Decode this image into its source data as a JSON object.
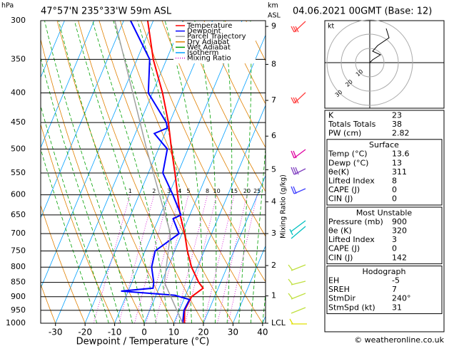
{
  "chart_data": {
    "type": "skewt",
    "title": "47°57'N 235°33'W 59m ASL",
    "date": "04.06.2021 00GMT (Base: 12)",
    "y_unit": "hPa",
    "y2_unit": "km",
    "y2_unit_sub": "ASL",
    "x_label": "Dewpoint / Temperature (°C)",
    "mixing_label": "Mixing Ratio (g/kg)",
    "xlim": [
      -35,
      41
    ],
    "xticks": [
      -30,
      -20,
      -10,
      0,
      10,
      20,
      30,
      40
    ],
    "ylim": [
      1000,
      300
    ],
    "yticks": [
      300,
      350,
      400,
      450,
      500,
      550,
      600,
      650,
      700,
      750,
      800,
      850,
      900,
      950,
      1000
    ],
    "y2ticks": [
      {
        "value": 897,
        "label": "1"
      },
      {
        "value": 795,
        "label": "2"
      },
      {
        "value": 700,
        "label": "3"
      },
      {
        "value": 617,
        "label": "4"
      },
      {
        "value": 543,
        "label": "5"
      },
      {
        "value": 475,
        "label": "6"
      },
      {
        "value": 412,
        "label": "7"
      },
      {
        "value": 357,
        "label": "8"
      },
      {
        "value": 307,
        "label": "9"
      },
      {
        "value": 1000,
        "label": "LCL"
      }
    ],
    "mixing_ratios": [
      1,
      2,
      3,
      4,
      5,
      8,
      10,
      15,
      20,
      25
    ],
    "series": [
      {
        "name": "Temperature",
        "color": "#ff0000",
        "p": [
          1000,
          950,
          900,
          870,
          850,
          800,
          750,
          700,
          650,
          600,
          550,
          500,
          450,
          400,
          350,
          300
        ],
        "values": [
          13.6,
          11.8,
          12.2,
          14.9,
          12.6,
          8.0,
          4.3,
          0.9,
          -3.3,
          -7,
          -11.0,
          -15.6,
          -20.4,
          -26.6,
          -34.5,
          -41.9
        ]
      },
      {
        "name": "Dewpoint",
        "color": "#0000ff",
        "p": [
          1000,
          950,
          910,
          895,
          880,
          870,
          850,
          800,
          750,
          700,
          660,
          650,
          600,
          550,
          500,
          470,
          460,
          450,
          400,
          350,
          300
        ],
        "values": [
          13,
          11.6,
          11.9,
          6.4,
          -12.4,
          -2.0,
          -2.6,
          -5.5,
          -6.6,
          -1.0,
          -5.1,
          -3.0,
          -8.6,
          -15.1,
          -17,
          -23.6,
          -20,
          -21.1,
          -31.4,
          -35.7,
          -47.7
        ]
      },
      {
        "name": "Parcel Trajectory",
        "color": "#a0a0a0",
        "p": [
          1000,
          850,
          700,
          500,
          300
        ],
        "values": [
          13,
          1.0,
          -3.9,
          -24,
          -53
        ]
      }
    ],
    "lines": [
      {
        "name": "Dry Adiabat",
        "color": "#e08000"
      },
      {
        "name": "Wet Adiabat",
        "color": "#00a000"
      },
      {
        "name": "Isotherm",
        "color": "#00a0ff"
      },
      {
        "name": "Mixing Ratio",
        "color": "#d000d0"
      }
    ],
    "hodograph": {
      "unit": "kt",
      "rings": [
        10,
        20,
        30
      ]
    }
  },
  "table": {
    "indices": [
      [
        "K",
        23
      ],
      [
        "Totals Totals",
        38
      ],
      [
        "PW (cm)",
        2.82
      ]
    ],
    "surface": {
      "title": "Surface",
      "rows": [
        [
          "Temp (°C)",
          13.6
        ],
        [
          "Dewp (°C)",
          13
        ],
        [
          "θe(K)",
          311
        ],
        [
          "Lifted Index",
          8
        ],
        [
          "CAPE (J)",
          0
        ],
        [
          "CIN (J)",
          0
        ]
      ]
    },
    "most_unstable": {
      "title": "Most Unstable",
      "rows": [
        [
          "Pressure (mb)",
          900
        ],
        [
          "θe (K)",
          320
        ],
        [
          "Lifted Index",
          3
        ],
        [
          "CAPE (J)",
          0
        ],
        [
          "CIN (J)",
          142
        ]
      ]
    },
    "hodograph": {
      "title": "Hodograph",
      "rows": [
        [
          "EH",
          -5
        ],
        [
          "SREH",
          7
        ],
        [
          "StmDir",
          "240°"
        ],
        [
          "StmSpd (kt)",
          31
        ]
      ]
    }
  },
  "footer": "© weatheronline.co.uk"
}
